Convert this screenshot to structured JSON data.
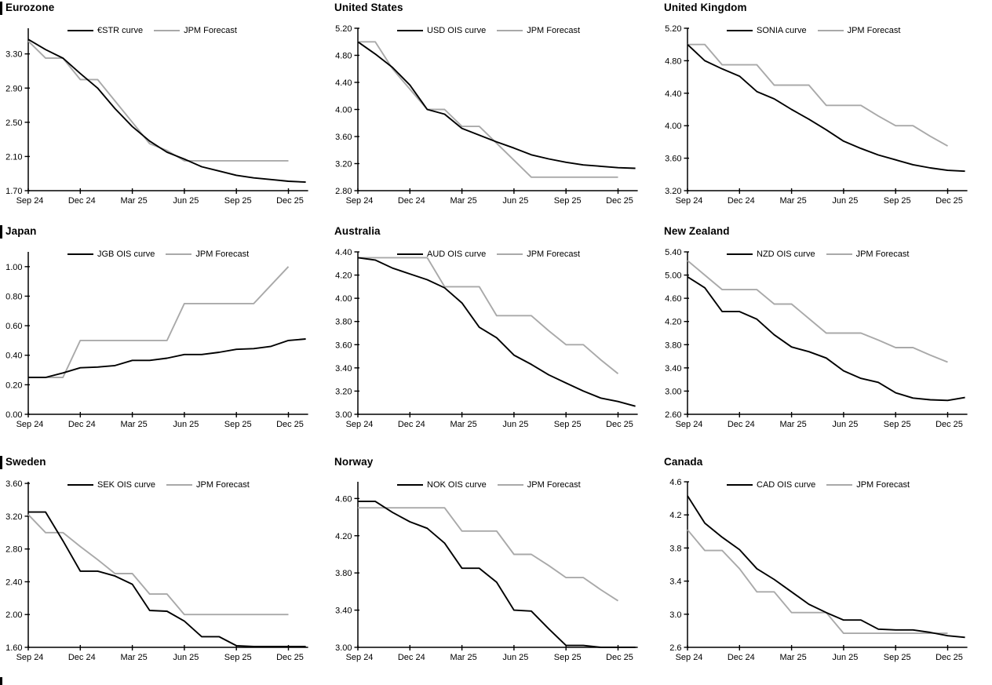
{
  "page": {
    "background": "#ffffff",
    "series_black": "#000000",
    "forecast_gray": "#a9a9a9"
  },
  "x_axis": {
    "months": [
      "Sep-24",
      "Oct-24",
      "Nov-24",
      "Dec-24",
      "Jan-25",
      "Feb-25",
      "Mar-25",
      "Apr-25",
      "May-25",
      "Jun-25",
      "Jul-25",
      "Aug-25",
      "Sep-25",
      "Oct-25",
      "Nov-25",
      "Dec-25",
      "Jan-26"
    ],
    "tick_labels": [
      "Sep 24",
      "Dec 24",
      "Mar 25",
      "Jun 25",
      "Sep 25",
      "Dec 25"
    ],
    "tick_month_indices": [
      0,
      3,
      6,
      9,
      12,
      15
    ]
  },
  "chart_data": [
    {
      "type": "line",
      "title": "Eurozone",
      "section_bar": true,
      "grid": false,
      "legend_position": "top-inside",
      "x_categories": "shared: x_axis.months",
      "ylim": [
        1.7,
        3.6
      ],
      "y_ticks": [
        1.7,
        2.1,
        2.5,
        2.9,
        3.3
      ],
      "y_tick_labels": [
        "1.70",
        "2.10",
        "2.50",
        "2.90",
        "3.30"
      ],
      "series": [
        {
          "name": "€STR curve",
          "role": "market",
          "color": "#000000",
          "values": [
            3.47,
            3.35,
            3.25,
            3.07,
            2.9,
            2.66,
            2.45,
            2.28,
            2.15,
            2.07,
            1.98,
            1.93,
            1.88,
            1.85,
            1.83,
            1.81,
            1.8
          ]
        },
        {
          "name": "JPM Forecast",
          "role": "forecast",
          "color": "#a9a9a9",
          "values": [
            3.45,
            3.25,
            3.25,
            3.0,
            3.0,
            2.75,
            2.5,
            2.25,
            2.17,
            2.05,
            2.05,
            2.05,
            2.05,
            2.05,
            2.05,
            2.05
          ]
        }
      ]
    },
    {
      "type": "line",
      "title": "United States",
      "section_bar": false,
      "grid": false,
      "legend_position": "top-inside",
      "x_categories": "shared: x_axis.months",
      "ylim": [
        2.8,
        5.2
      ],
      "y_ticks": [
        2.8,
        3.2,
        3.6,
        4.0,
        4.4,
        4.8,
        5.2
      ],
      "y_tick_labels": [
        "2.80",
        "3.20",
        "3.60",
        "4.00",
        "4.40",
        "4.80",
        "5.20"
      ],
      "series": [
        {
          "name": "USD OIS curve",
          "role": "market",
          "color": "#000000",
          "values": [
            5.0,
            4.82,
            4.62,
            4.36,
            4.0,
            3.93,
            3.72,
            3.62,
            3.52,
            3.43,
            3.33,
            3.27,
            3.22,
            3.18,
            3.16,
            3.14,
            3.13
          ]
        },
        {
          "name": "JPM Forecast",
          "role": "forecast",
          "color": "#a9a9a9",
          "values": [
            5.0,
            5.0,
            4.6,
            4.3,
            4.0,
            4.0,
            3.75,
            3.75,
            3.5,
            3.25,
            3.0,
            3.0,
            3.0,
            3.0,
            3.0,
            3.0
          ]
        }
      ]
    },
    {
      "type": "line",
      "title": "United Kingdom",
      "section_bar": false,
      "grid": false,
      "legend_position": "top-inside",
      "x_categories": "shared: x_axis.months",
      "ylim": [
        3.2,
        5.2
      ],
      "y_ticks": [
        3.2,
        3.6,
        4.0,
        4.4,
        4.8,
        5.2
      ],
      "y_tick_labels": [
        "3.20",
        "3.60",
        "4.00",
        "4.40",
        "4.80",
        "5.20"
      ],
      "series": [
        {
          "name": "SONIA curve",
          "role": "market",
          "color": "#000000",
          "values": [
            5.0,
            4.8,
            4.7,
            4.61,
            4.42,
            4.33,
            4.2,
            4.08,
            3.95,
            3.81,
            3.72,
            3.64,
            3.58,
            3.52,
            3.48,
            3.45,
            3.44
          ]
        },
        {
          "name": "JPM Forecast",
          "role": "forecast",
          "color": "#a9a9a9",
          "values": [
            5.0,
            5.0,
            4.75,
            4.75,
            4.75,
            4.5,
            4.5,
            4.5,
            4.25,
            4.25,
            4.25,
            4.12,
            4.0,
            4.0,
            3.87,
            3.75
          ]
        }
      ]
    },
    {
      "type": "line",
      "title": "Japan",
      "section_bar": true,
      "grid": false,
      "legend_position": "top-inside",
      "x_categories": "shared: x_axis.months",
      "ylim": [
        0.0,
        1.1
      ],
      "y_ticks": [
        0.0,
        0.2,
        0.4,
        0.6,
        0.8,
        1.0
      ],
      "y_tick_labels": [
        "0.00",
        "0.20",
        "0.40",
        "0.60",
        "0.80",
        "1.00"
      ],
      "series": [
        {
          "name": "JGB OIS curve",
          "role": "market",
          "color": "#000000",
          "values": [
            0.25,
            0.25,
            0.28,
            0.315,
            0.32,
            0.33,
            0.365,
            0.365,
            0.38,
            0.405,
            0.405,
            0.42,
            0.44,
            0.445,
            0.46,
            0.5,
            0.51
          ]
        },
        {
          "name": "JPM Forecast",
          "role": "forecast",
          "color": "#a9a9a9",
          "values": [
            0.25,
            0.25,
            0.25,
            0.5,
            0.5,
            0.5,
            0.5,
            0.5,
            0.5,
            0.75,
            0.75,
            0.75,
            0.75,
            0.75,
            0.875,
            1.0
          ]
        }
      ]
    },
    {
      "type": "line",
      "title": "Australia",
      "section_bar": false,
      "grid": false,
      "legend_position": "top-inside",
      "x_categories": "shared: x_axis.months",
      "ylim": [
        3.0,
        4.4
      ],
      "y_ticks": [
        3.0,
        3.2,
        3.4,
        3.6,
        3.8,
        4.0,
        4.2,
        4.4
      ],
      "y_tick_labels": [
        "3.00",
        "3.20",
        "3.40",
        "3.60",
        "3.80",
        "4.00",
        "4.20",
        "4.40"
      ],
      "series": [
        {
          "name": "AUD OIS curve",
          "role": "market",
          "color": "#000000",
          "values": [
            4.35,
            4.33,
            4.26,
            4.21,
            4.16,
            4.09,
            3.96,
            3.75,
            3.66,
            3.51,
            3.43,
            3.34,
            3.27,
            3.2,
            3.14,
            3.11,
            3.07
          ]
        },
        {
          "name": "JPM Forecast",
          "role": "forecast",
          "color": "#a9a9a9",
          "values": [
            4.35,
            4.35,
            4.35,
            4.35,
            4.35,
            4.1,
            4.1,
            4.1,
            3.85,
            3.85,
            3.85,
            3.72,
            3.6,
            3.6,
            3.47,
            3.35
          ]
        }
      ]
    },
    {
      "type": "line",
      "title": "New Zealand",
      "section_bar": false,
      "grid": false,
      "legend_position": "top-inside",
      "x_categories": "shared: x_axis.months",
      "ylim": [
        2.6,
        5.4
      ],
      "y_ticks": [
        2.6,
        3.0,
        3.4,
        3.8,
        4.2,
        4.6,
        5.0,
        5.4
      ],
      "y_tick_labels": [
        "2.60",
        "3.00",
        "3.40",
        "3.80",
        "4.20",
        "4.60",
        "5.00",
        "5.40"
      ],
      "series": [
        {
          "name": "NZD OIS curve",
          "role": "market",
          "color": "#000000",
          "values": [
            4.97,
            4.78,
            4.37,
            4.37,
            4.24,
            3.97,
            3.76,
            3.68,
            3.57,
            3.35,
            3.22,
            3.15,
            2.97,
            2.88,
            2.85,
            2.84,
            2.89
          ]
        },
        {
          "name": "JPM Forecast",
          "role": "forecast",
          "color": "#a9a9a9",
          "values": [
            5.25,
            5.0,
            4.75,
            4.75,
            4.75,
            4.5,
            4.5,
            4.25,
            4.0,
            4.0,
            4.0,
            3.88,
            3.75,
            3.75,
            3.62,
            3.5
          ]
        }
      ]
    },
    {
      "type": "line",
      "title": "Sweden",
      "section_bar": true,
      "grid": false,
      "legend_position": "top-inside",
      "x_categories": "shared: x_axis.months",
      "ylim": [
        1.6,
        3.62
      ],
      "y_ticks": [
        1.6,
        2.0,
        2.4,
        2.8,
        3.2,
        3.6
      ],
      "y_tick_labels": [
        "1.60",
        "2.00",
        "2.40",
        "2.80",
        "3.20",
        "3.60"
      ],
      "series": [
        {
          "name": "SEK OIS curve",
          "role": "market",
          "color": "#000000",
          "values": [
            3.25,
            3.25,
            2.9,
            2.53,
            2.53,
            2.47,
            2.37,
            2.05,
            2.04,
            1.92,
            1.73,
            1.73,
            1.62,
            1.61,
            1.61,
            1.61,
            1.61
          ]
        },
        {
          "name": "JPM Forecast",
          "role": "forecast",
          "color": "#a9a9a9",
          "values": [
            3.22,
            3.0,
            3.0,
            2.83,
            2.67,
            2.5,
            2.5,
            2.25,
            2.25,
            2.0,
            2.0,
            2.0,
            2.0,
            2.0,
            2.0,
            2.0
          ]
        }
      ]
    },
    {
      "type": "line",
      "title": "Norway",
      "section_bar": false,
      "grid": false,
      "legend_position": "top-inside",
      "x_categories": "shared: x_axis.months",
      "ylim": [
        3.0,
        4.78
      ],
      "y_ticks": [
        3.0,
        3.4,
        3.8,
        4.2,
        4.6
      ],
      "y_tick_labels": [
        "3.00",
        "3.40",
        "3.80",
        "4.20",
        "4.60"
      ],
      "series": [
        {
          "name": "NOK OIS curve",
          "role": "market",
          "color": "#000000",
          "values": [
            4.57,
            4.57,
            4.45,
            4.35,
            4.28,
            4.12,
            3.85,
            3.85,
            3.7,
            3.4,
            3.39,
            3.2,
            3.02,
            3.02,
            3.0,
            3.0,
            3.0
          ]
        },
        {
          "name": "JPM Forecast",
          "role": "forecast",
          "color": "#a9a9a9",
          "values": [
            4.5,
            4.5,
            4.5,
            4.5,
            4.5,
            4.5,
            4.25,
            4.25,
            4.25,
            4.0,
            4.0,
            3.88,
            3.75,
            3.75,
            3.62,
            3.5
          ]
        }
      ]
    },
    {
      "type": "line",
      "title": "Canada",
      "section_bar": false,
      "grid": false,
      "legend_position": "top-inside",
      "x_categories": "shared: x_axis.months",
      "ylim": [
        2.6,
        4.6
      ],
      "y_ticks": [
        2.6,
        3.0,
        3.4,
        3.8,
        4.2,
        4.6
      ],
      "y_tick_labels": [
        "2.6",
        "3.0",
        "3.4",
        "3.8",
        "4.2",
        "4.6"
      ],
      "series": [
        {
          "name": "CAD OIS curve",
          "role": "market",
          "color": "#000000",
          "values": [
            4.43,
            4.1,
            3.93,
            3.78,
            3.55,
            3.42,
            3.27,
            3.12,
            3.02,
            2.93,
            2.93,
            2.82,
            2.81,
            2.81,
            2.78,
            2.74,
            2.72
          ]
        },
        {
          "name": "JPM Forecast",
          "role": "forecast",
          "color": "#a9a9a9",
          "values": [
            4.02,
            3.77,
            3.77,
            3.55,
            3.27,
            3.27,
            3.02,
            3.02,
            3.02,
            2.77,
            2.77,
            2.77,
            2.77,
            2.77,
            2.77,
            2.77
          ]
        }
      ]
    }
  ]
}
